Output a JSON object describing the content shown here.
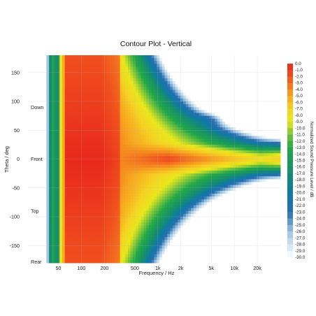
{
  "chart_data": {
    "type": "heatmap",
    "title": "Contour Plot - Vertical",
    "xlabel": "Frequency / Hz",
    "ylabel": "Theta / deg",
    "x_scale": "log",
    "xlim": [
      20,
      40000
    ],
    "ylim": [
      -180,
      180
    ],
    "x_ticks": [
      {
        "value": 50,
        "label": "50"
      },
      {
        "value": 100,
        "label": "100"
      },
      {
        "value": 200,
        "label": "200"
      },
      {
        "value": 500,
        "label": "500"
      },
      {
        "value": 1000,
        "label": "1k"
      },
      {
        "value": 2000,
        "label": "2k"
      },
      {
        "value": 5000,
        "label": "5k"
      },
      {
        "value": 10000,
        "label": "10k"
      },
      {
        "value": 20000,
        "label": "20k"
      }
    ],
    "y_ticks": [
      150,
      100,
      50,
      0,
      -50,
      -100,
      -150
    ],
    "grid": true,
    "annotations": [
      {
        "text": "Down",
        "theta": 90
      },
      {
        "text": "Front",
        "theta": 0
      },
      {
        "text": "Top",
        "theta": -90
      },
      {
        "text": "Rear",
        "theta": -180
      }
    ],
    "colorbar": {
      "label": "Normalized Sound Pressure Level / dB",
      "min": -30.0,
      "max": 0.0,
      "step": 1.0,
      "tick_labels": [
        "0.0",
        "-1.0",
        "-2.0",
        "-3.0",
        "-4.0",
        "-5.0",
        "-6.0",
        "-7.0",
        "-8.0",
        "-9.0",
        "-10.0",
        "-11.0",
        "-12.0",
        "-13.0",
        "-14.0",
        "-15.0",
        "-16.0",
        "-17.0",
        "-18.0",
        "-19.0",
        "-20.0",
        "-21.0",
        "-22.0",
        "-23.0",
        "-24.0",
        "-25.0",
        "-26.0",
        "-27.0",
        "-28.0",
        "-29.0",
        "-30.0"
      ]
    },
    "colors": {
      "level_0": "#e8291c",
      "level_-5": "#f7a520",
      "level_-9": "#e9e81c",
      "level_-13": "#22a848",
      "level_-20": "#0e7aa5",
      "level_-26": "#9ac4e0",
      "level_-30": "#ffffff"
    }
  }
}
